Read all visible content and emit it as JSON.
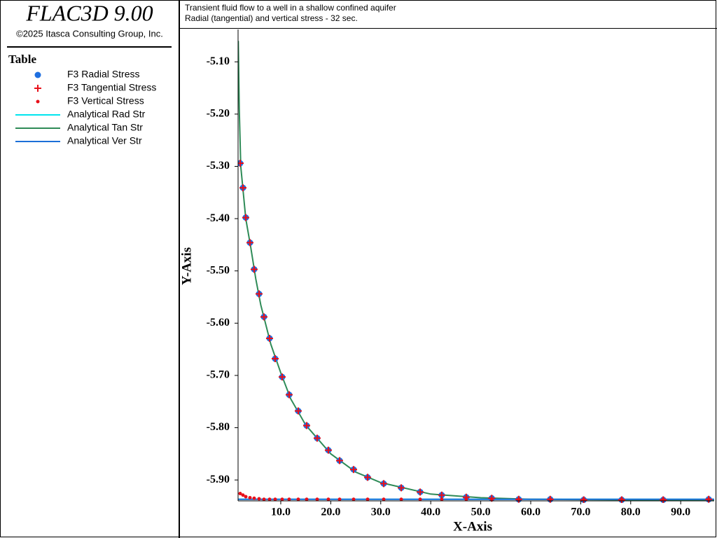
{
  "app": {
    "title": "FLAC3D 9.00",
    "copyright": "©2025 Itasca Consulting Group, Inc."
  },
  "chart_data": {
    "type": "line",
    "title": "Transient fluid flow to a well in a shallow confined aquifer",
    "subtitle": "Radial (tangential) and vertical stress - 32 sec.",
    "legend_title": "Table",
    "x_label": "X-Axis",
    "y_label": "Y-Axis",
    "xlim": [
      1.46,
      96.7
    ],
    "ylim": [
      -5.94,
      -5.038
    ],
    "xticks": [
      {
        "value": 10,
        "label": "10.0"
      },
      {
        "value": 20,
        "label": "20.0"
      },
      {
        "value": 30,
        "label": "30.0"
      },
      {
        "value": 40,
        "label": "40.0"
      },
      {
        "value": 50,
        "label": "50.0"
      },
      {
        "value": 60,
        "label": "60.0"
      },
      {
        "value": 70,
        "label": "70.0"
      },
      {
        "value": 80,
        "label": "80.0"
      },
      {
        "value": 90,
        "label": "90.0"
      }
    ],
    "yticks": [
      {
        "value": -5.1,
        "label": "-5.10"
      },
      {
        "value": -5.2,
        "label": "-5.20"
      },
      {
        "value": -5.3,
        "label": "-5.30"
      },
      {
        "value": -5.4,
        "label": "-5.40"
      },
      {
        "value": -5.5,
        "label": "-5.50"
      },
      {
        "value": -5.6,
        "label": "-5.60"
      },
      {
        "value": -5.7,
        "label": "-5.70"
      },
      {
        "value": -5.8,
        "label": "-5.80"
      },
      {
        "value": -5.9,
        "label": "-5.90"
      }
    ],
    "series": [
      {
        "name": "F3 Radial Stress",
        "color": "#1e6fe0",
        "marker": "circle",
        "x": [
          1.88,
          2.44,
          3.0,
          3.84,
          4.68,
          5.66,
          6.64,
          7.76,
          8.88,
          10.28,
          11.68,
          13.5,
          15.18,
          17.28,
          19.52,
          21.77,
          24.57,
          27.37,
          30.59,
          34.1,
          37.88,
          42.2,
          47.1,
          52.2,
          57.6,
          63.9,
          70.6,
          78.2,
          86.5,
          95.6
        ],
        "values": [
          -5.294,
          -5.341,
          -5.398,
          -5.446,
          -5.497,
          -5.544,
          -5.588,
          -5.629,
          -5.668,
          -5.703,
          -5.737,
          -5.768,
          -5.796,
          -5.82,
          -5.843,
          -5.863,
          -5.88,
          -5.895,
          -5.907,
          -5.915,
          -5.923,
          -5.929,
          -5.933,
          -5.935,
          -5.937,
          -5.937,
          -5.938,
          -5.938,
          -5.938,
          -5.937
        ]
      },
      {
        "name": "F3 Tangential Stress",
        "color": "#e8101a",
        "marker": "plus",
        "x": [
          1.88,
          2.44,
          3.0,
          3.84,
          4.68,
          5.66,
          6.64,
          7.76,
          8.88,
          10.28,
          11.68,
          13.5,
          15.18,
          17.28,
          19.52,
          21.77,
          24.57,
          27.37,
          30.59,
          34.1,
          37.88,
          42.2,
          47.1,
          52.2,
          57.6,
          63.9,
          70.6,
          78.2,
          86.5,
          95.6
        ],
        "values": [
          -5.294,
          -5.341,
          -5.398,
          -5.446,
          -5.497,
          -5.544,
          -5.588,
          -5.629,
          -5.668,
          -5.703,
          -5.737,
          -5.768,
          -5.796,
          -5.82,
          -5.843,
          -5.863,
          -5.88,
          -5.895,
          -5.907,
          -5.915,
          -5.923,
          -5.929,
          -5.933,
          -5.935,
          -5.937,
          -5.937,
          -5.938,
          -5.938,
          -5.938,
          -5.937
        ]
      },
      {
        "name": "F3 Vertical Stress",
        "color": "#e8101a",
        "marker": "dot",
        "x": [
          1.88,
          2.44,
          3.0,
          3.84,
          4.68,
          5.66,
          6.64,
          7.76,
          8.88,
          10.28,
          11.68,
          13.5,
          15.18,
          17.28,
          19.52,
          21.77,
          24.57,
          27.37,
          30.59,
          34.1,
          37.88,
          42.2,
          47.1,
          52.2,
          57.6,
          63.9,
          70.6,
          78.2,
          86.5,
          95.6
        ],
        "values": [
          -5.926,
          -5.929,
          -5.932,
          -5.934,
          -5.935,
          -5.936,
          -5.937,
          -5.937,
          -5.937,
          -5.937,
          -5.937,
          -5.937,
          -5.937,
          -5.937,
          -5.937,
          -5.937,
          -5.937,
          -5.937,
          -5.937,
          -5.937,
          -5.937,
          -5.937,
          -5.937,
          -5.937,
          -5.937,
          -5.937,
          -5.937,
          -5.937,
          -5.937,
          -5.937
        ]
      },
      {
        "name": "Analytical Rad Str",
        "color": "#00e5ee",
        "marker": "line",
        "x": [
          1.5,
          5,
          10,
          20,
          40,
          60,
          80,
          96.7
        ],
        "values": [
          -5.937,
          -5.937,
          -5.937,
          -5.937,
          -5.937,
          -5.937,
          -5.937,
          -5.937
        ]
      },
      {
        "name": "Analytical Tan Str",
        "color": "#2e8b57",
        "marker": "line",
        "x": [
          1.5,
          1.7,
          2,
          2.5,
          3,
          4,
          5,
          6,
          8,
          10,
          12,
          15,
          20,
          25,
          30,
          40,
          50,
          60,
          80,
          96.7
        ],
        "values": [
          -5.06,
          -5.19,
          -5.3,
          -5.35,
          -5.4,
          -5.455,
          -5.515,
          -5.565,
          -5.64,
          -5.695,
          -5.745,
          -5.795,
          -5.85,
          -5.885,
          -5.905,
          -5.927,
          -5.934,
          -5.937,
          -5.938,
          -5.938
        ]
      },
      {
        "name": "Analytical Ver Str",
        "color": "#1c6fd8",
        "marker": "line",
        "x": [
          1.5,
          5,
          10,
          20,
          40,
          60,
          80,
          96.7
        ],
        "values": [
          -5.937,
          -5.937,
          -5.937,
          -5.937,
          -5.937,
          -5.937,
          -5.937,
          -5.937
        ]
      }
    ]
  }
}
